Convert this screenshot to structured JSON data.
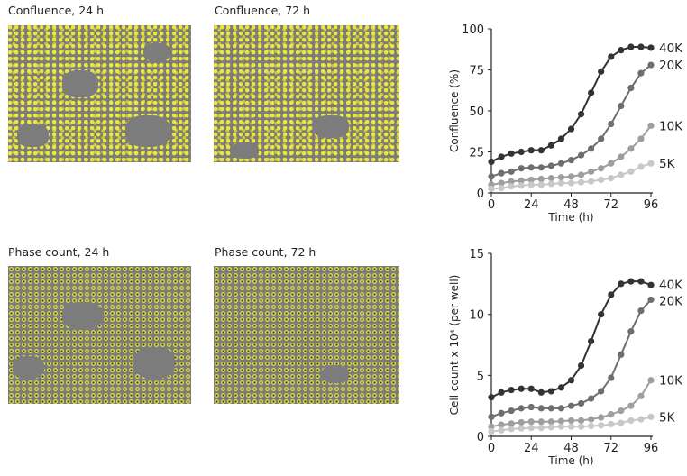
{
  "panels": {
    "confluence_24": "Confluence, 24 h",
    "confluence_72": "Confluence, 72 h",
    "phase_24": "Phase count, 24 h",
    "phase_72": "Phase count, 72 h"
  },
  "colors": {
    "40K": "#333333",
    "20K": "#6e6e6e",
    "10K": "#9e9e9e",
    "5K": "#c8c8c8",
    "mask": "#f0eb3c",
    "background": "#7c7c7c"
  },
  "chart_data": [
    {
      "type": "line",
      "xlabel": "Time (h)",
      "ylabel": "Confluence (%)",
      "xlim": [
        0,
        96
      ],
      "ylim": [
        0,
        100
      ],
      "xticks": [
        0,
        24,
        48,
        72,
        96
      ],
      "yticks": [
        0,
        25,
        50,
        75,
        100
      ],
      "grid": false,
      "legend": "line-end labels",
      "x": [
        0,
        6,
        12,
        18,
        24,
        30,
        36,
        42,
        48,
        54,
        60,
        66,
        72,
        78,
        84,
        90,
        96
      ],
      "series": [
        {
          "name": "40K",
          "values": [
            19,
            22,
            24,
            25,
            26,
            26,
            29,
            33,
            39,
            48,
            61,
            74,
            83,
            87,
            89,
            89,
            88.5
          ]
        },
        {
          "name": "20K",
          "values": [
            10,
            12,
            13,
            15,
            15.5,
            15.5,
            16.5,
            18,
            20,
            23,
            27,
            33,
            42,
            53,
            64,
            73,
            78
          ]
        },
        {
          "name": "10K",
          "values": [
            5,
            6,
            7,
            7.5,
            8,
            8.5,
            9,
            9.5,
            10,
            11,
            13,
            15,
            18,
            22,
            27,
            33,
            41
          ]
        },
        {
          "name": "5K",
          "values": [
            2.5,
            3,
            4,
            4.5,
            5,
            5,
            5.5,
            6,
            6,
            6.5,
            7,
            8,
            9,
            11,
            13,
            16,
            18
          ]
        }
      ]
    },
    {
      "type": "line",
      "xlabel": "Time (h)",
      "ylabel": "Cell count x 10⁴ (per well)",
      "xlim": [
        0,
        96
      ],
      "ylim": [
        0,
        15
      ],
      "xticks": [
        0,
        24,
        48,
        72,
        96
      ],
      "yticks": [
        0,
        5,
        10,
        15
      ],
      "grid": false,
      "legend": "line-end labels",
      "x": [
        0,
        6,
        12,
        18,
        24,
        30,
        36,
        42,
        48,
        54,
        60,
        66,
        72,
        78,
        84,
        90,
        96
      ],
      "series": [
        {
          "name": "40K",
          "values": [
            3.2,
            3.6,
            3.8,
            3.9,
            3.9,
            3.6,
            3.7,
            4.0,
            4.6,
            5.8,
            7.8,
            10.0,
            11.6,
            12.5,
            12.7,
            12.7,
            12.4
          ]
        },
        {
          "name": "20K",
          "values": [
            1.6,
            1.9,
            2.1,
            2.3,
            2.4,
            2.3,
            2.3,
            2.3,
            2.5,
            2.7,
            3.1,
            3.7,
            4.8,
            6.7,
            8.6,
            10.3,
            11.2
          ]
        },
        {
          "name": "10K",
          "values": [
            0.8,
            0.95,
            1.05,
            1.15,
            1.2,
            1.2,
            1.2,
            1.25,
            1.3,
            1.3,
            1.4,
            1.55,
            1.8,
            2.1,
            2.5,
            3.3,
            4.6
          ]
        },
        {
          "name": "5K",
          "values": [
            0.4,
            0.5,
            0.6,
            0.65,
            0.7,
            0.7,
            0.75,
            0.8,
            0.8,
            0.8,
            0.85,
            0.9,
            1.0,
            1.1,
            1.3,
            1.4,
            1.6
          ]
        }
      ]
    }
  ]
}
